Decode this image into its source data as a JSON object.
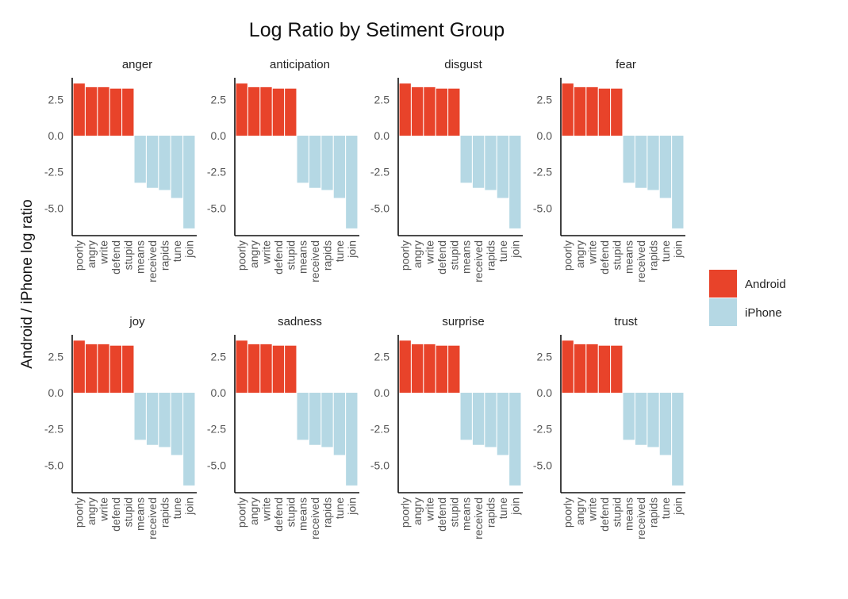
{
  "chart_data": {
    "type": "bar",
    "title": "Log Ratio by Setiment Group",
    "ylabel": "Android / iPhone log ratio",
    "xlabel": "",
    "categories": [
      "poorly",
      "angry",
      "write",
      "defend",
      "stupid",
      "means",
      "received",
      "rapids",
      "tune",
      "join"
    ],
    "values": [
      3.6,
      3.35,
      3.35,
      3.25,
      3.25,
      -3.25,
      -3.6,
      -3.75,
      -4.3,
      -6.4
    ],
    "groups": [
      "Android",
      "Android",
      "Android",
      "Android",
      "Android",
      "iPhone",
      "iPhone",
      "iPhone",
      "iPhone",
      "iPhone"
    ],
    "facets": [
      "anger",
      "anticipation",
      "disgust",
      "fear",
      "joy",
      "sadness",
      "surprise",
      "trust"
    ],
    "ylim": [
      -6.9,
      4.0
    ],
    "yticks": [
      2.5,
      0.0,
      -2.5,
      -5.0
    ],
    "ytick_labels": [
      "2.5",
      "0.0",
      "-2.5",
      "-5.0"
    ],
    "grid": false,
    "legend": {
      "placement": "right",
      "entries": [
        {
          "label": "Android",
          "color": "#E8432A"
        },
        {
          "label": "iPhone",
          "color": "#B5D8E4"
        }
      ]
    }
  }
}
